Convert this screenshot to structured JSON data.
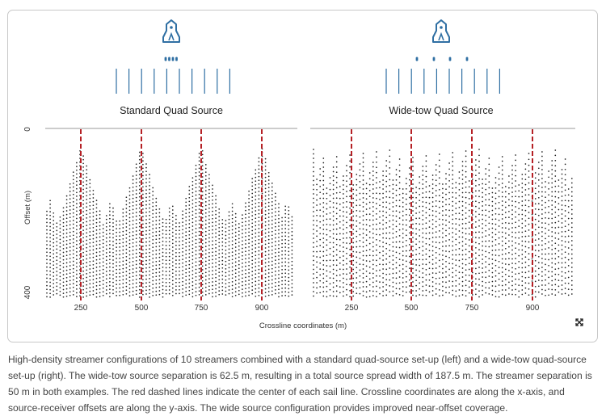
{
  "figure": {
    "left_title": "Standard Quad Source",
    "right_title": "Wide-tow Quad Source",
    "y_axis_label": "Offset (m)",
    "x_axis_label": "Crossline coordinates (m)",
    "y_ticks": [
      "0",
      "400"
    ],
    "left_x_ticks": [
      "250",
      "500",
      "750",
      "900"
    ],
    "right_x_ticks": [
      "250",
      "500",
      "750",
      "900"
    ],
    "streamer_count": 10,
    "streamer_separation_m": 50,
    "wide_tow_source_separation_m": 62.5,
    "total_source_spread_m": 187.5,
    "colors": {
      "vessel": "#2f6fa3",
      "streamer": "#2f6fa3",
      "sail_line": "#b52025",
      "dots": "#222222",
      "axis": "#9a9a9a"
    },
    "icons": [
      "vessel-icon",
      "expand-icon"
    ]
  },
  "caption": "High-density streamer configurations of 10 streamers combined with a standard quad-source set-up (left) and a wide-tow quad-source set-up (right). The wide-tow source separation is 62.5 m, resulting in a total source spread width of 187.5 m. The streamer separation is 50 m in both examples. The red dashed lines indicate the center of each sail line. Crossline coordinates are along the x-axis, and source-receiver offsets are along the y-axis. The wide source configuration provides improved near-offset coverage."
}
